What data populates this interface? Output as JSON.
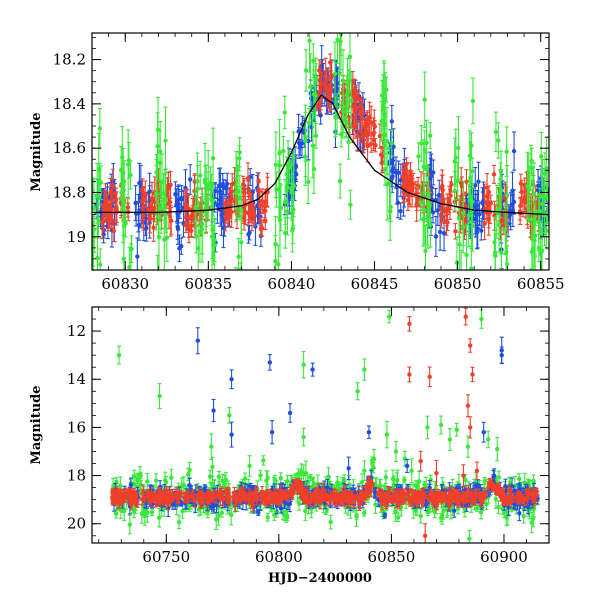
{
  "colors": {
    "blue": "#1f4fe0",
    "red": "#f0402a",
    "green": "#39e83a",
    "model": "#000000",
    "axes": "#000000"
  },
  "chart_data": [
    {
      "type": "scatter",
      "panel": "top",
      "xlabel": "",
      "ylabel": "Magnitude",
      "xlim": [
        60828.0,
        60855.5
      ],
      "ylim": [
        19.15,
        18.08
      ],
      "y_inverted": true,
      "x_ticks": [
        60830,
        60835,
        60840,
        60845,
        60850,
        60855
      ],
      "x_tick_labels": [
        "60830",
        "60835",
        "60840",
        "60845",
        "60850",
        "60855"
      ],
      "y_ticks": [
        18.2,
        18.4,
        18.6,
        18.8,
        19.0
      ],
      "y_tick_labels": [
        "18.2",
        "18.4",
        "18.6",
        "18.8",
        "19"
      ],
      "grid": false,
      "legend": "none",
      "baseline_mag": 18.87,
      "outburst": {
        "peak_time": 60841.8,
        "peak_mag": 18.32,
        "rise_days": 1.6,
        "decay_days": 4.5
      },
      "model_curve": {
        "color": "model",
        "points": [
          [
            60828.0,
            18.89
          ],
          [
            60832.0,
            18.89
          ],
          [
            60835.0,
            18.88
          ],
          [
            60837.0,
            18.86
          ],
          [
            60838.0,
            18.83
          ],
          [
            60839.0,
            18.76
          ],
          [
            60840.0,
            18.62
          ],
          [
            60841.0,
            18.45
          ],
          [
            60841.8,
            18.36
          ],
          [
            60842.5,
            18.4
          ],
          [
            60843.5,
            18.55
          ],
          [
            60845.0,
            18.7
          ],
          [
            60847.0,
            18.8
          ],
          [
            60849.0,
            18.85
          ],
          [
            60851.0,
            18.88
          ],
          [
            60853.0,
            18.89
          ],
          [
            60855.5,
            18.9
          ]
        ]
      },
      "series": [
        {
          "color": "blue",
          "segments": [
            [
              60828.2,
              60829.4
            ],
            [
              60830.6,
              60831.6
            ],
            [
              60833.0,
              60834.0
            ],
            [
              60835.2,
              60836.4
            ],
            [
              60837.4,
              60838.2
            ],
            [
              60839.6,
              60840.8
            ],
            [
              60841.0,
              60842.8
            ],
            [
              60843.6,
              60844.4
            ],
            [
              60845.8,
              60846.8
            ],
            [
              60848.2,
              60849.2
            ],
            [
              60850.4,
              60851.6
            ],
            [
              60852.6,
              60853.4
            ],
            [
              60854.8,
              60855.5
            ]
          ],
          "sigma": 0.07,
          "err": 0.06
        },
        {
          "color": "red",
          "segments": [
            [
              60828.6,
              60830.2
            ],
            [
              60831.0,
              60832.8
            ],
            [
              60833.6,
              60835.0
            ],
            [
              60836.0,
              60837.8
            ],
            [
              60838.0,
              60838.6
            ],
            [
              60841.4,
              60842.4
            ],
            [
              60843.0,
              60845.6
            ],
            [
              60846.4,
              60848.4
            ],
            [
              60849.0,
              60850.6
            ],
            [
              60851.6,
              60853.0
            ],
            [
              60853.6,
              60855.0
            ]
          ],
          "sigma": 0.05,
          "err": 0.05
        },
        {
          "color": "green",
          "segments": [
            [
              60828.0,
              60828.6
            ],
            [
              60829.6,
              60830.4
            ],
            [
              60831.8,
              60832.6
            ],
            [
              60834.2,
              60835.4
            ],
            [
              60836.6,
              60837.2
            ],
            [
              60839.0,
              60840.2
            ],
            [
              60840.8,
              60841.6
            ],
            [
              60842.6,
              60843.6
            ],
            [
              60845.4,
              60846.2
            ],
            [
              60847.6,
              60848.4
            ],
            [
              60849.8,
              60851.0
            ],
            [
              60852.2,
              60853.0
            ],
            [
              60854.2,
              60855.5
            ]
          ],
          "sigma": 0.18,
          "err": 0.11
        }
      ]
    },
    {
      "type": "scatter",
      "panel": "bottom",
      "xlabel": "HJD−2400000",
      "ylabel": "Magnitude",
      "xlim": [
        60717,
        60920
      ],
      "ylim": [
        20.8,
        11.0
      ],
      "y_inverted": true,
      "x_ticks": [
        60750,
        60800,
        60850,
        60900
      ],
      "x_tick_labels": [
        "60750",
        "60800",
        "60850",
        "60900"
      ],
      "y_ticks": [
        12,
        14,
        16,
        18,
        20
      ],
      "y_tick_labels": [
        "12",
        "14",
        "16",
        "18",
        "20"
      ],
      "grid": false,
      "legend": "none",
      "baseline_mag": 18.9,
      "data_span": [
        60726,
        60915
      ],
      "series": [
        {
          "color": "green",
          "sigma": 0.45,
          "err": 0.3,
          "count": 520
        },
        {
          "color": "blue",
          "sigma": 0.2,
          "err": 0.25,
          "count": 420
        },
        {
          "color": "red",
          "sigma": 0.12,
          "err": 0.2,
          "count": 560
        }
      ],
      "outliers": [
        {
          "color": "green",
          "points": [
            [
              60729,
              13.0
            ],
            [
              60747,
              14.7
            ],
            [
              60778,
              15.5
            ],
            [
              60787,
              17.6
            ],
            [
              60811,
              13.4
            ],
            [
              60811,
              16.4
            ],
            [
              60838,
              13.6
            ],
            [
              60838,
              17.8
            ],
            [
              60835,
              14.5
            ],
            [
              60848,
              16.3
            ],
            [
              60849,
              11.4
            ],
            [
              60852,
              17.0
            ],
            [
              60856,
              17.3
            ],
            [
              60859,
              17.8
            ],
            [
              60866,
              16.0
            ],
            [
              60872,
              15.9
            ],
            [
              60876,
              16.5
            ],
            [
              60879,
              16.1
            ],
            [
              60884,
              16.8
            ],
            [
              60890,
              11.5
            ],
            [
              60893,
              16.5
            ],
            [
              60897,
              16.9
            ],
            [
              60812,
              17.9
            ],
            [
              60795,
              18.1
            ],
            [
              60770,
              16.8
            ]
          ]
        },
        {
          "color": "blue",
          "points": [
            [
              60764,
              12.4
            ],
            [
              60771,
              15.3
            ],
            [
              60779,
              14.0
            ],
            [
              60779,
              16.3
            ],
            [
              60796,
              13.3
            ],
            [
              60797,
              16.2
            ],
            [
              60805,
              15.4
            ],
            [
              60815,
              13.6
            ],
            [
              60840,
              16.2
            ],
            [
              60857,
              17.6
            ],
            [
              60891,
              16.2
            ],
            [
              60899,
              13.0
            ],
            [
              60899,
              12.8
            ],
            [
              60831,
              17.7
            ]
          ]
        },
        {
          "color": "red",
          "points": [
            [
              60858,
              11.7
            ],
            [
              60858,
              13.8
            ],
            [
              60867,
              13.9
            ],
            [
              60863,
              17.4
            ],
            [
              60865,
              20.5
            ],
            [
              60870,
              17.9
            ],
            [
              60883,
              11.4
            ],
            [
              60885,
              12.6
            ],
            [
              60886,
              13.8
            ],
            [
              60884,
              15.1
            ],
            [
              60885,
              16.0
            ],
            [
              60888,
              17.8
            ],
            [
              60882,
              18.0
            ]
          ]
        }
      ]
    }
  ]
}
